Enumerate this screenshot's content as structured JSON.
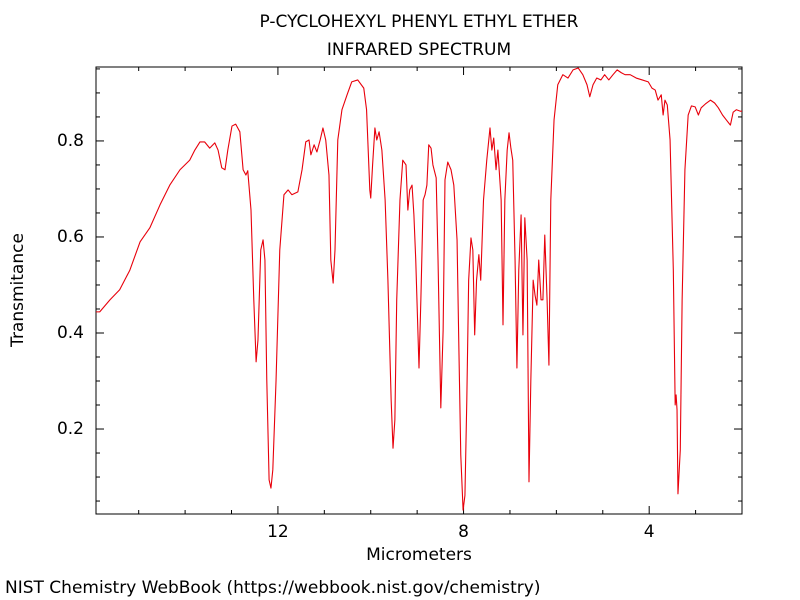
{
  "chart_data": {
    "type": "line",
    "title": "P-CYCLOHEXYL PHENYL ETHYL ETHER",
    "subtitle": "INFRARED SPECTRUM",
    "xlabel": "Micrometers",
    "ylabel": "Transmitance",
    "source": "NIST Chemistry WebBook (https://webbook.nist.gov/chemistry)",
    "xlim": [
      15.92,
      2.0
    ],
    "ylim": [
      0.023,
      0.954
    ],
    "xticks": [
      12,
      8,
      4
    ],
    "yticks": [
      0.2,
      0.4,
      0.6,
      0.8
    ],
    "xminorticks": [
      15,
      14,
      13,
      11,
      10,
      9,
      7,
      6,
      5,
      3
    ],
    "yminorticks": [
      0.05,
      0.1,
      0.15,
      0.25,
      0.3,
      0.35,
      0.45,
      0.5,
      0.55,
      0.65,
      0.7,
      0.75,
      0.85,
      0.9,
      0.95
    ],
    "grid": false,
    "series": [
      {
        "name": "Transmitance",
        "color": "#e8000b",
        "x": [
          15.92,
          15.84,
          15.62,
          15.41,
          15.19,
          14.97,
          14.76,
          14.54,
          14.33,
          14.11,
          13.9,
          13.79,
          13.68,
          13.58,
          13.47,
          13.36,
          13.29,
          13.21,
          13.14,
          13.08,
          12.99,
          12.91,
          12.82,
          12.75,
          12.69,
          12.65,
          12.58,
          12.52,
          12.47,
          12.43,
          12.37,
          12.32,
          12.28,
          12.24,
          12.19,
          12.15,
          12.11,
          12.04,
          11.96,
          11.87,
          11.78,
          11.7,
          11.57,
          11.48,
          11.4,
          11.33,
          11.29,
          11.22,
          11.16,
          11.09,
          11.03,
          10.97,
          10.9,
          10.86,
          10.81,
          10.77,
          10.71,
          10.62,
          10.51,
          10.41,
          10.28,
          10.15,
          10.09,
          10.02,
          10.0,
          9.96,
          9.91,
          9.87,
          9.82,
          9.76,
          9.69,
          9.63,
          9.56,
          9.52,
          9.48,
          9.44,
          9.37,
          9.31,
          9.24,
          9.2,
          9.16,
          9.11,
          9.07,
          9.03,
          8.96,
          8.92,
          8.87,
          8.83,
          8.79,
          8.75,
          8.7,
          8.66,
          8.59,
          8.55,
          8.49,
          8.44,
          8.4,
          8.34,
          8.27,
          8.21,
          8.14,
          8.1,
          8.06,
          8.01,
          7.97,
          7.93,
          7.89,
          7.84,
          7.8,
          7.76,
          7.72,
          7.67,
          7.63,
          7.57,
          7.5,
          7.43,
          7.39,
          7.35,
          7.3,
          7.26,
          7.19,
          7.15,
          7.11,
          7.06,
          7.02,
          6.98,
          6.94,
          6.89,
          6.85,
          6.81,
          6.76,
          6.72,
          6.68,
          6.63,
          6.59,
          6.55,
          6.5,
          6.46,
          6.42,
          6.38,
          6.33,
          6.29,
          6.25,
          6.2,
          6.16,
          6.12,
          6.05,
          5.97,
          5.86,
          5.75,
          5.64,
          5.53,
          5.43,
          5.34,
          5.28,
          5.21,
          5.13,
          5.04,
          4.96,
          4.87,
          4.78,
          4.69,
          4.6,
          4.52,
          4.41,
          4.28,
          4.15,
          4.02,
          3.94,
          3.87,
          3.81,
          3.74,
          3.7,
          3.66,
          3.61,
          3.55,
          3.48,
          3.44,
          3.42,
          3.4,
          3.38,
          3.33,
          3.29,
          3.23,
          3.16,
          3.09,
          3.01,
          2.94,
          2.88,
          2.79,
          2.68,
          2.59,
          2.51,
          2.42,
          2.34,
          2.25,
          2.19,
          2.12,
          2.04,
          2.0
        ],
        "values": [
          0.444,
          0.444,
          0.469,
          0.49,
          0.531,
          0.59,
          0.619,
          0.667,
          0.708,
          0.74,
          0.76,
          0.781,
          0.798,
          0.798,
          0.785,
          0.796,
          0.781,
          0.744,
          0.74,
          0.781,
          0.831,
          0.835,
          0.819,
          0.74,
          0.729,
          0.738,
          0.656,
          0.469,
          0.34,
          0.385,
          0.573,
          0.594,
          0.552,
          0.302,
          0.094,
          0.077,
          0.115,
          0.302,
          0.573,
          0.688,
          0.698,
          0.688,
          0.694,
          0.74,
          0.798,
          0.802,
          0.771,
          0.792,
          0.777,
          0.802,
          0.827,
          0.802,
          0.729,
          0.552,
          0.504,
          0.573,
          0.802,
          0.865,
          0.896,
          0.923,
          0.927,
          0.91,
          0.865,
          0.698,
          0.681,
          0.75,
          0.827,
          0.802,
          0.819,
          0.781,
          0.677,
          0.51,
          0.26,
          0.16,
          0.219,
          0.469,
          0.677,
          0.76,
          0.75,
          0.656,
          0.698,
          0.708,
          0.646,
          0.552,
          0.327,
          0.469,
          0.677,
          0.688,
          0.708,
          0.792,
          0.785,
          0.75,
          0.723,
          0.552,
          0.244,
          0.406,
          0.719,
          0.756,
          0.74,
          0.708,
          0.594,
          0.365,
          0.146,
          0.031,
          0.062,
          0.26,
          0.51,
          0.598,
          0.573,
          0.396,
          0.51,
          0.563,
          0.51,
          0.677,
          0.76,
          0.827,
          0.781,
          0.806,
          0.74,
          0.781,
          0.677,
          0.417,
          0.677,
          0.781,
          0.817,
          0.785,
          0.76,
          0.552,
          0.327,
          0.531,
          0.646,
          0.396,
          0.64,
          0.552,
          0.09,
          0.302,
          0.51,
          0.479,
          0.458,
          0.552,
          0.469,
          0.469,
          0.604,
          0.469,
          0.333,
          0.677,
          0.844,
          0.917,
          0.938,
          0.931,
          0.948,
          0.952,
          0.938,
          0.917,
          0.892,
          0.917,
          0.931,
          0.927,
          0.938,
          0.927,
          0.938,
          0.948,
          0.942,
          0.938,
          0.938,
          0.931,
          0.927,
          0.923,
          0.91,
          0.906,
          0.885,
          0.896,
          0.854,
          0.885,
          0.875,
          0.802,
          0.531,
          0.25,
          0.271,
          0.24,
          0.065,
          0.156,
          0.469,
          0.74,
          0.854,
          0.873,
          0.871,
          0.854,
          0.869,
          0.877,
          0.885,
          0.879,
          0.869,
          0.854,
          0.844,
          0.833,
          0.86,
          0.865,
          0.862,
          0.862
        ]
      }
    ]
  }
}
